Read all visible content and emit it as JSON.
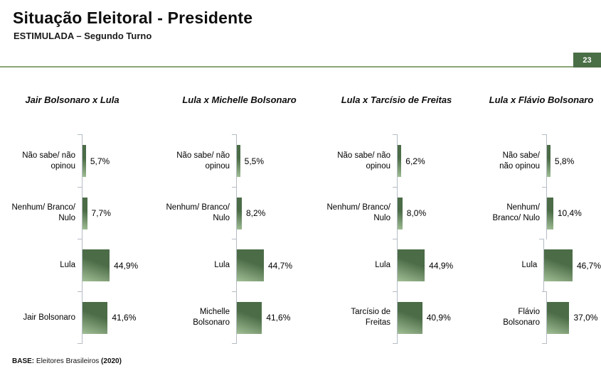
{
  "header": {
    "title": "Situação Eleitoral - Presidente",
    "subtitle": "ESTIMULADA – Segundo Turno",
    "page_number": "23"
  },
  "footer": {
    "base_label": "BASE:",
    "base_text": " Eleitores Brasileiros ",
    "base_year": "(2020)"
  },
  "colors": {
    "bar_dark": "#4b6c47",
    "bar_light": "#a2bf96",
    "accent_line": "#8aa578",
    "badge_bg": "#4a6e46",
    "axis": "#b5bcc4"
  },
  "chart_data": [
    {
      "type": "bar",
      "orientation": "horizontal",
      "title": "Jair Bolsonaro x Lula",
      "categories": [
        "Não sabe/ não\nopinou",
        "Nenhum/ Branco/\nNulo",
        "Lula",
        "Jair Bolsonaro"
      ],
      "values": [
        5.7,
        7.7,
        44.9,
        41.6
      ],
      "value_labels": [
        "5,7%",
        "7,7%",
        "44,9%",
        "41,6%"
      ],
      "xlim": [
        0,
        55
      ],
      "grid": false,
      "legend": "none"
    },
    {
      "type": "bar",
      "orientation": "horizontal",
      "title": "Lula x Michelle Bolsonaro",
      "categories": [
        "Não sabe/ não\nopinou",
        "Nenhum/ Branco/\nNulo",
        "Lula",
        "Michelle\nBolsonaro"
      ],
      "values": [
        5.5,
        8.2,
        44.7,
        41.6
      ],
      "value_labels": [
        "5,5%",
        "8,2%",
        "44,7%",
        "41,6%"
      ],
      "xlim": [
        0,
        55
      ],
      "grid": false,
      "legend": "none"
    },
    {
      "type": "bar",
      "orientation": "horizontal",
      "title": "Lula x Tarcísio de Freitas",
      "categories": [
        "Não sabe/ não\nopinou",
        "Nenhum/ Branco/\nNulo",
        "Lula",
        "Tarcísio de\nFreitas"
      ],
      "values": [
        6.2,
        8.0,
        44.9,
        40.9
      ],
      "value_labels": [
        "6,2%",
        "8,0%",
        "44,9%",
        "40,9%"
      ],
      "xlim": [
        0,
        55
      ],
      "grid": false,
      "legend": "none"
    },
    {
      "type": "bar",
      "orientation": "horizontal",
      "title": "Lula x Flávio Bolsonaro",
      "categories": [
        "Não sabe/\nnão opinou",
        "Nenhum/\nBranco/ Nulo",
        "Lula",
        "Flávio\nBolsonaro"
      ],
      "values": [
        5.8,
        10.4,
        46.7,
        37.0
      ],
      "value_labels": [
        "5,8%",
        "10,4%",
        "46,7%",
        "37,0%"
      ],
      "xlim": [
        0,
        55
      ],
      "grid": false,
      "legend": "none"
    }
  ]
}
